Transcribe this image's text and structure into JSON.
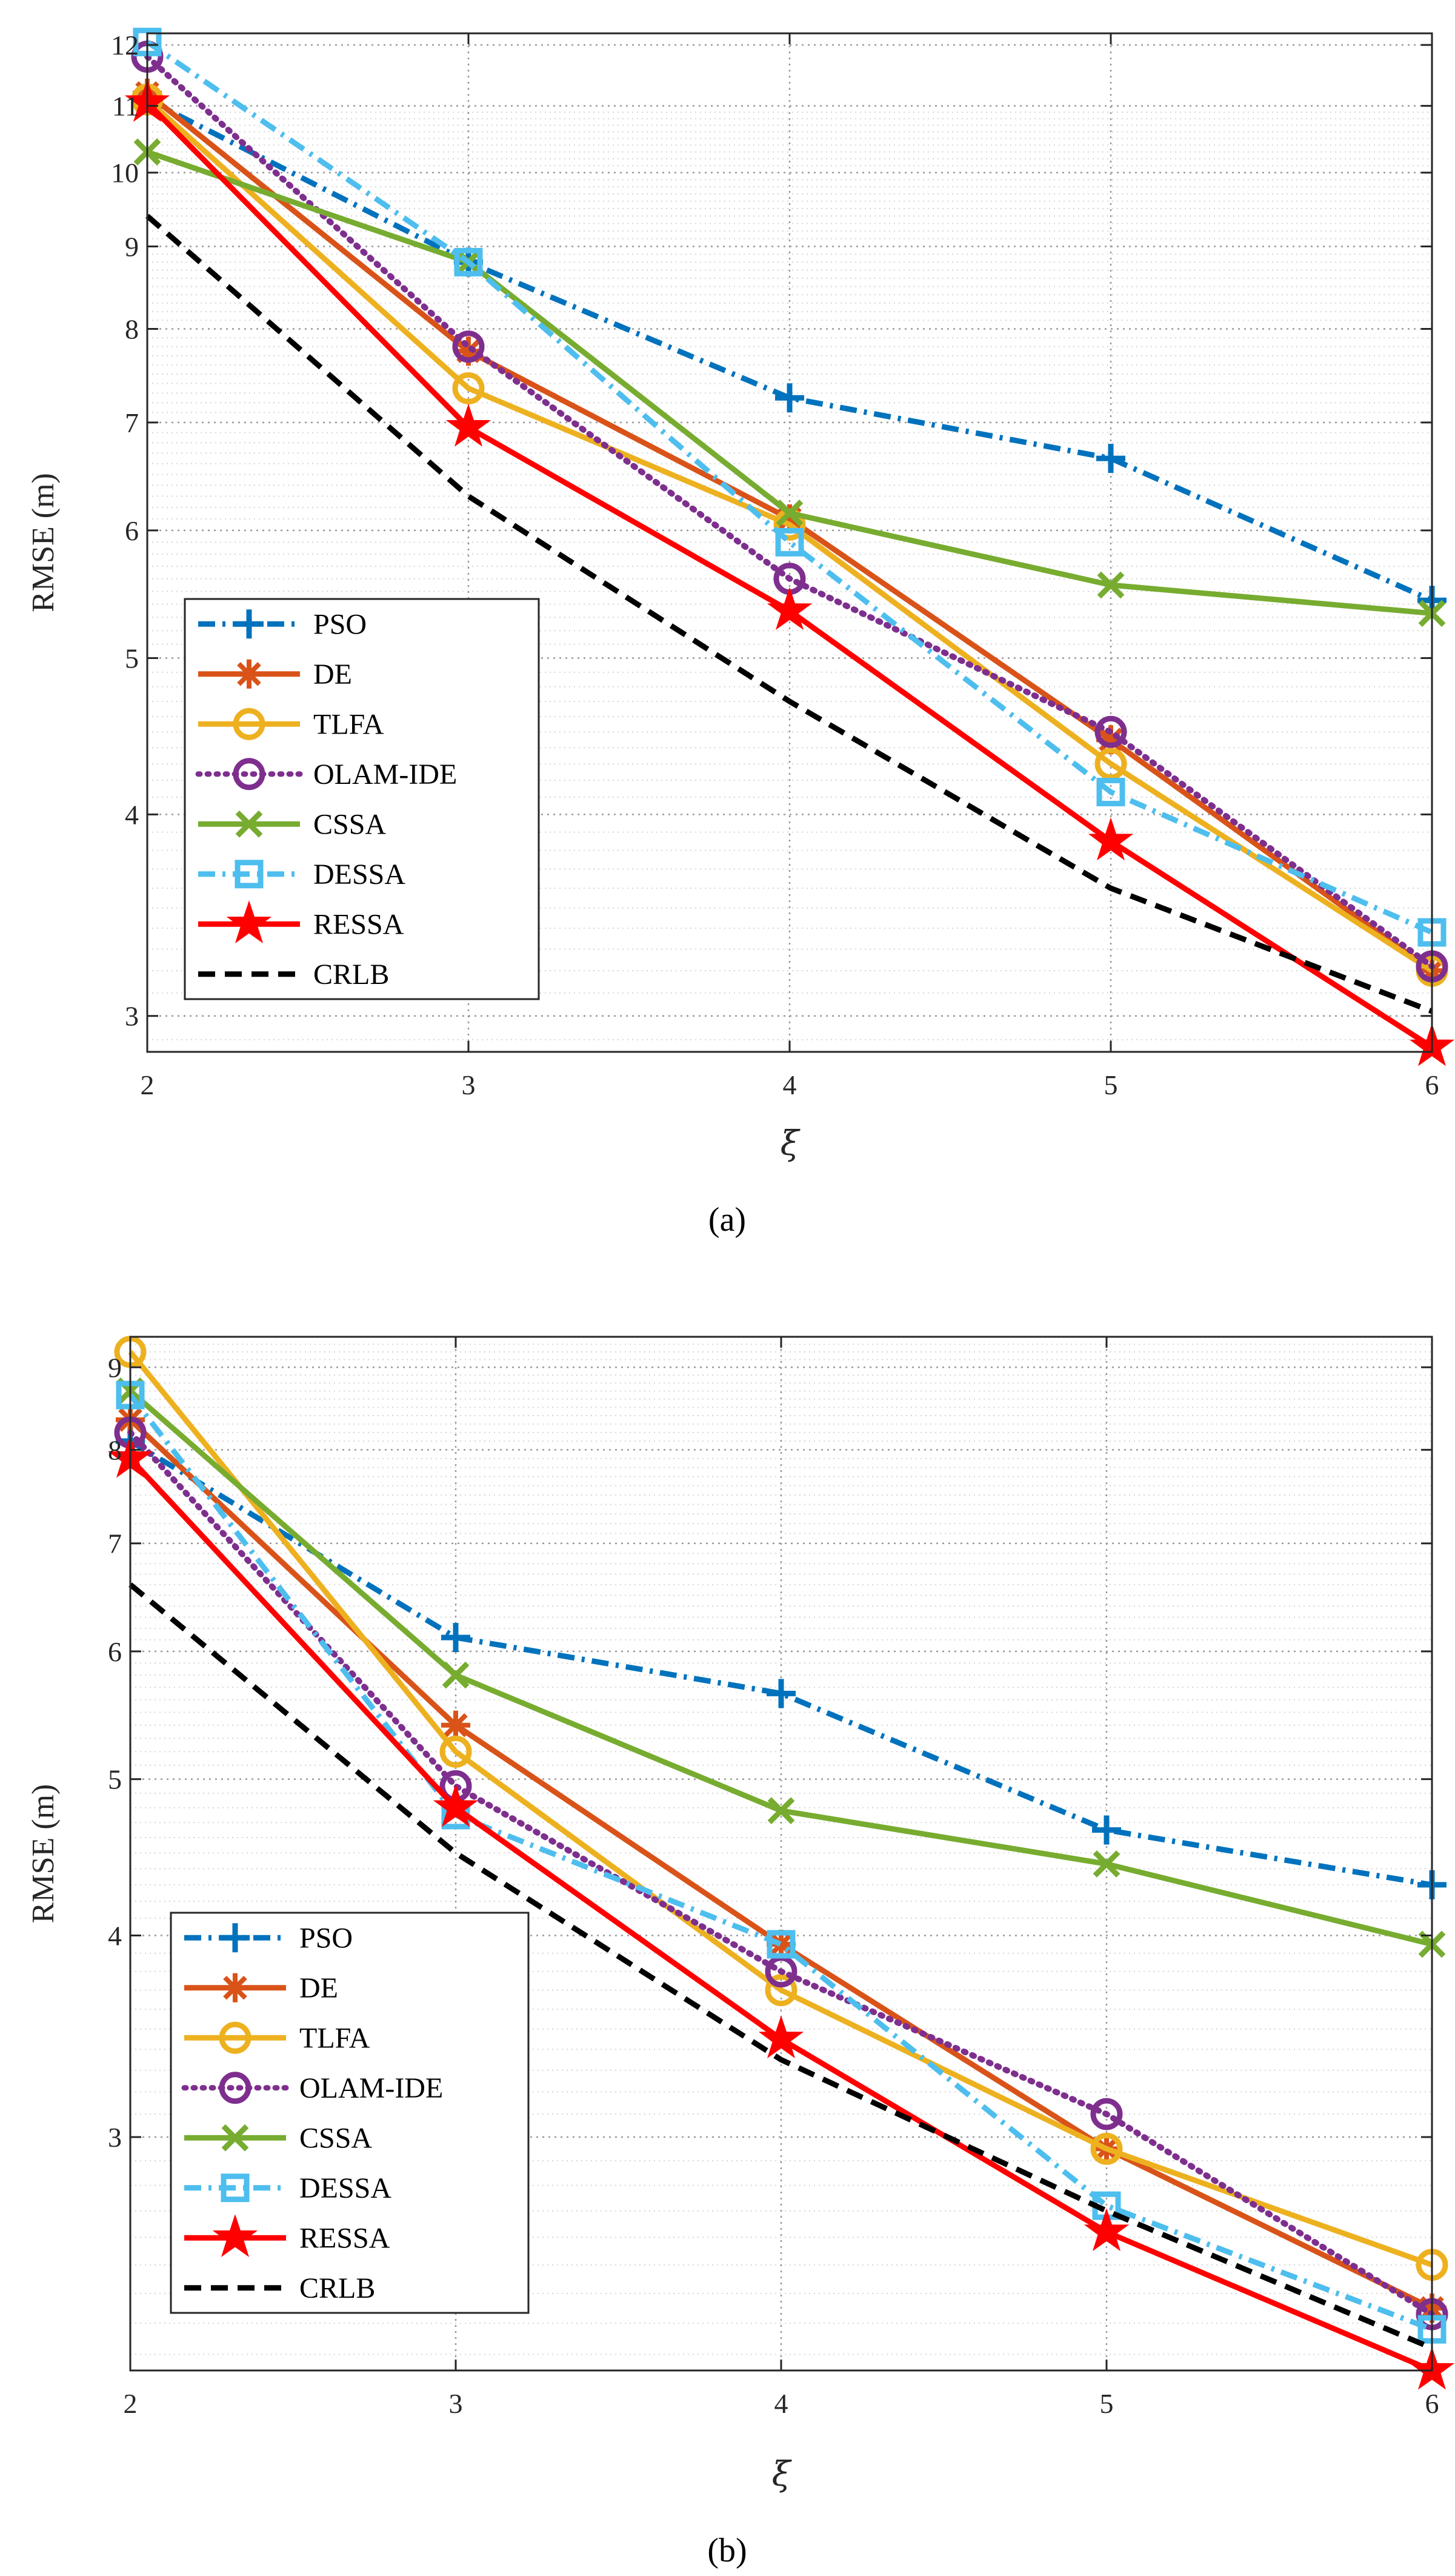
{
  "captions": [
    "(a)",
    "(b)"
  ],
  "chart_data": [
    {
      "type": "line",
      "xlabel": "ξ",
      "ylabel": "RMSE (m)",
      "yscale": "log",
      "grid": true,
      "legend_position": "lower-left",
      "x": [
        2,
        3,
        4,
        5,
        6
      ],
      "xticks": [
        "2",
        "3",
        "4",
        "5",
        "6"
      ],
      "xlim": [
        2,
        6
      ],
      "yticks": [
        3,
        4,
        5,
        6,
        7,
        8,
        9,
        10,
        11,
        12
      ],
      "ylim": [
        2.85,
        12.2
      ],
      "series": [
        {
          "name": "PSO",
          "values": [
            11.1,
            8.8,
            7.25,
            6.65,
            5.43
          ],
          "color": "#0072BD",
          "dash": "dashdot",
          "marker": "plus"
        },
        {
          "name": "DE",
          "values": [
            11.2,
            7.75,
            6.1,
            4.45,
            3.2
          ],
          "color": "#D95319",
          "dash": "solid",
          "marker": "asterisk"
        },
        {
          "name": "TLFA",
          "values": [
            11.1,
            7.35,
            6.05,
            4.3,
            3.2
          ],
          "color": "#EDB120",
          "dash": "solid",
          "marker": "circle"
        },
        {
          "name": "OLAM-IDE",
          "values": [
            11.8,
            7.8,
            5.6,
            4.5,
            3.22
          ],
          "color": "#7E2F8E",
          "dash": "dotted",
          "marker": "circle"
        },
        {
          "name": "CSSA",
          "values": [
            10.3,
            8.8,
            6.15,
            5.55,
            5.33
          ],
          "color": "#77AC30",
          "dash": "solid",
          "marker": "x"
        },
        {
          "name": "DESSA",
          "values": [
            12.05,
            8.8,
            5.9,
            4.13,
            3.38
          ],
          "color": "#4DBEEE",
          "dash": "dashdot",
          "marker": "square"
        },
        {
          "name": "RESSA",
          "values": [
            11.05,
            6.95,
            5.35,
            3.85,
            2.87
          ],
          "color": "#FF0000",
          "dash": "solid",
          "marker": "star"
        },
        {
          "name": "CRLB",
          "values": [
            9.4,
            6.3,
            4.7,
            3.6,
            3.02
          ],
          "color": "#000000",
          "dash": "dashed",
          "marker": "none"
        }
      ]
    },
    {
      "type": "line",
      "xlabel": "ξ",
      "ylabel": "RMSE (m)",
      "yscale": "log",
      "grid": true,
      "legend_position": "lower-left",
      "x": [
        2,
        3,
        4,
        5,
        6
      ],
      "xticks": [
        "2",
        "3",
        "4",
        "5",
        "6"
      ],
      "xlim": [
        2,
        6
      ],
      "yticks": [
        3,
        4,
        5,
        6,
        7,
        8,
        9
      ],
      "ylim": [
        2.15,
        9.4
      ],
      "series": [
        {
          "name": "PSO",
          "values": [
            8.1,
            6.12,
            5.65,
            4.65,
            4.3
          ],
          "color": "#0072BD",
          "dash": "dashdot",
          "marker": "plus"
        },
        {
          "name": "DE",
          "values": [
            8.35,
            5.4,
            3.95,
            2.95,
            2.35
          ],
          "color": "#D95319",
          "dash": "solid",
          "marker": "asterisk"
        },
        {
          "name": "TLFA",
          "values": [
            9.2,
            5.2,
            3.7,
            2.95,
            2.5
          ],
          "color": "#EDB120",
          "dash": "solid",
          "marker": "circle"
        },
        {
          "name": "OLAM-IDE",
          "values": [
            8.2,
            4.95,
            3.8,
            3.1,
            2.33
          ],
          "color": "#7E2F8E",
          "dash": "dotted",
          "marker": "circle"
        },
        {
          "name": "CSSA",
          "values": [
            8.7,
            5.8,
            4.78,
            4.43,
            3.95
          ],
          "color": "#77AC30",
          "dash": "solid",
          "marker": "x"
        },
        {
          "name": "DESSA",
          "values": [
            8.65,
            4.75,
            3.95,
            2.72,
            2.28
          ],
          "color": "#4DBEEE",
          "dash": "dashdot",
          "marker": "square"
        },
        {
          "name": "RESSA",
          "values": [
            7.9,
            4.8,
            3.45,
            2.62,
            2.15
          ],
          "color": "#FF0000",
          "dash": "solid",
          "marker": "star"
        },
        {
          "name": "CRLB",
          "values": [
            6.6,
            4.5,
            3.35,
            2.7,
            2.22
          ],
          "color": "#000000",
          "dash": "dashed",
          "marker": "none"
        }
      ]
    }
  ]
}
